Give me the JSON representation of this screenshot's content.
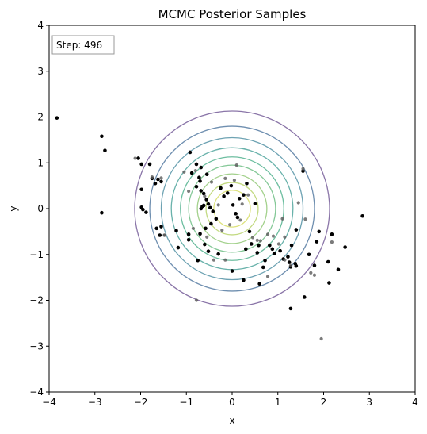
{
  "chart_data": {
    "type": "scatter",
    "title": "MCMC Posterior Samples",
    "xlabel": "x",
    "ylabel": "y",
    "xlim": [
      -4,
      4
    ],
    "ylim": [
      -4,
      4
    ],
    "xticks": [
      "−4",
      "−3",
      "−2",
      "−1",
      "0",
      "1",
      "2",
      "3",
      "4"
    ],
    "yticks": [
      "−4",
      "−3",
      "−2",
      "−1",
      "0",
      "1",
      "2",
      "3",
      "4"
    ],
    "grid": false,
    "annotation": "Step: 496",
    "contours": {
      "center": [
        0,
        0
      ],
      "radii": [
        2.13,
        1.8,
        1.55,
        1.33,
        1.13,
        0.95,
        0.76,
        0.57,
        0.4
      ],
      "colors": [
        "#8a75a8",
        "#6f8fb0",
        "#6ea3b3",
        "#69b2ab",
        "#6dbea0",
        "#84c897",
        "#a3d18c",
        "#c3da82",
        "#dde27c"
      ]
    },
    "series": [
      {
        "style": "recent",
        "color": "#000000",
        "points": [
          [
            -3.83,
            1.98
          ],
          [
            -2.85,
            1.58
          ],
          [
            -2.78,
            1.27
          ],
          [
            -2.85,
            -0.09
          ],
          [
            -2.05,
            1.1
          ],
          [
            -1.98,
            0.97
          ],
          [
            -1.8,
            0.97
          ],
          [
            -1.75,
            0.66
          ],
          [
            -1.62,
            0.64
          ],
          [
            -1.55,
            0.59
          ],
          [
            -1.68,
            0.55
          ],
          [
            -1.98,
            0.42
          ],
          [
            -1.98,
            0.03
          ],
          [
            -1.95,
            -0.02
          ],
          [
            -1.88,
            -0.08
          ],
          [
            -1.65,
            -0.43
          ],
          [
            -1.58,
            -0.58
          ],
          [
            -1.55,
            -0.39
          ],
          [
            -1.22,
            -0.48
          ],
          [
            -1.18,
            -0.85
          ],
          [
            -0.95,
            -0.56
          ],
          [
            -0.95,
            -0.68
          ],
          [
            -0.92,
            1.23
          ],
          [
            -0.78,
            0.97
          ],
          [
            -0.68,
            0.9
          ],
          [
            -0.88,
            0.78
          ],
          [
            -0.72,
            0.68
          ],
          [
            -0.55,
            0.75
          ],
          [
            -0.78,
            0.48
          ],
          [
            -0.68,
            0.39
          ],
          [
            -0.62,
            0.33
          ],
          [
            -0.56,
            0.2
          ],
          [
            -0.52,
            0.1
          ],
          [
            -0.62,
            0.07
          ],
          [
            -0.65,
            0.05
          ],
          [
            -0.68,
            0.0
          ],
          [
            -0.48,
            0.02
          ],
          [
            -0.42,
            -0.06
          ],
          [
            -0.35,
            -0.22
          ],
          [
            -0.46,
            -0.33
          ],
          [
            -0.58,
            -0.43
          ],
          [
            -0.7,
            -0.55
          ],
          [
            -0.6,
            -0.78
          ],
          [
            -0.52,
            -0.93
          ],
          [
            -0.3,
            -0.99
          ],
          [
            -0.75,
            -1.13
          ],
          [
            -0.25,
            0.45
          ],
          [
            -0.18,
            0.27
          ],
          [
            -0.1,
            0.34
          ],
          [
            -0.02,
            0.5
          ],
          [
            0.02,
            0.08
          ],
          [
            0.08,
            -0.11
          ],
          [
            0.12,
            -0.19
          ],
          [
            0.16,
            0.22
          ],
          [
            0.25,
            0.3
          ],
          [
            0.32,
            0.55
          ],
          [
            0.38,
            -0.5
          ],
          [
            0.42,
            -0.77
          ],
          [
            0.5,
            0.11
          ],
          [
            0.55,
            -0.96
          ],
          [
            0.58,
            -0.8
          ],
          [
            0.6,
            -1.64
          ],
          [
            0.68,
            -1.28
          ],
          [
            0.72,
            -1.13
          ],
          [
            0.82,
            -0.8
          ],
          [
            0.88,
            -0.88
          ],
          [
            0.92,
            -0.98
          ],
          [
            1.05,
            -0.92
          ],
          [
            1.12,
            -1.1
          ],
          [
            1.22,
            -1.05
          ],
          [
            1.25,
            -1.17
          ],
          [
            1.28,
            -1.27
          ],
          [
            1.3,
            -0.8
          ],
          [
            1.38,
            -1.2
          ],
          [
            1.4,
            -1.25
          ],
          [
            1.4,
            -0.46
          ],
          [
            1.28,
            -2.18
          ],
          [
            1.55,
            0.82
          ],
          [
            1.68,
            -1.0
          ],
          [
            1.8,
            -1.24
          ],
          [
            1.85,
            -0.72
          ],
          [
            1.9,
            -0.5
          ],
          [
            2.1,
            -1.16
          ],
          [
            2.12,
            -1.62
          ],
          [
            2.18,
            -0.56
          ],
          [
            2.32,
            -1.33
          ],
          [
            2.47,
            -0.84
          ],
          [
            2.85,
            -0.16
          ],
          [
            0.0,
            -1.36
          ],
          [
            0.25,
            -1.56
          ],
          [
            -0.7,
            0.6
          ],
          [
            0.3,
            -0.88
          ],
          [
            1.58,
            -1.93
          ]
        ]
      },
      {
        "style": "older",
        "color": "#5a5a5a",
        "points": [
          [
            -2.12,
            1.1
          ],
          [
            -1.75,
            0.69
          ],
          [
            -1.55,
            0.67
          ],
          [
            -1.48,
            -0.58
          ],
          [
            -1.05,
            0.8
          ],
          [
            -0.95,
            0.38
          ],
          [
            -0.85,
            -0.43
          ],
          [
            -0.8,
            0.83
          ],
          [
            -0.6,
            0.27
          ],
          [
            -0.55,
            -0.62
          ],
          [
            -0.45,
            0.58
          ],
          [
            -0.4,
            -1.12
          ],
          [
            -0.3,
            0.08
          ],
          [
            -0.22,
            -0.47
          ],
          [
            -0.15,
            0.66
          ],
          [
            -0.05,
            -0.35
          ],
          [
            0.05,
            0.62
          ],
          [
            0.1,
            0.95
          ],
          [
            0.18,
            -0.25
          ],
          [
            0.22,
            0.1
          ],
          [
            0.35,
            0.3
          ],
          [
            0.45,
            -0.63
          ],
          [
            0.55,
            -0.69
          ],
          [
            0.62,
            -0.7
          ],
          [
            0.78,
            -0.56
          ],
          [
            0.9,
            -0.6
          ],
          [
            1.02,
            -0.77
          ],
          [
            1.1,
            -0.22
          ],
          [
            1.15,
            -0.62
          ],
          [
            1.28,
            -1.24
          ],
          [
            1.45,
            0.13
          ],
          [
            1.55,
            0.87
          ],
          [
            1.6,
            -0.23
          ],
          [
            1.72,
            -1.4
          ],
          [
            1.8,
            -1.45
          ],
          [
            1.95,
            -2.84
          ],
          [
            2.18,
            -0.73
          ],
          [
            -1.48,
            -0.58
          ],
          [
            -0.78,
            -2.0
          ],
          [
            -0.15,
            -1.12
          ],
          [
            0.78,
            -1.48
          ],
          [
            1.15,
            -1.12
          ]
        ]
      }
    ]
  }
}
